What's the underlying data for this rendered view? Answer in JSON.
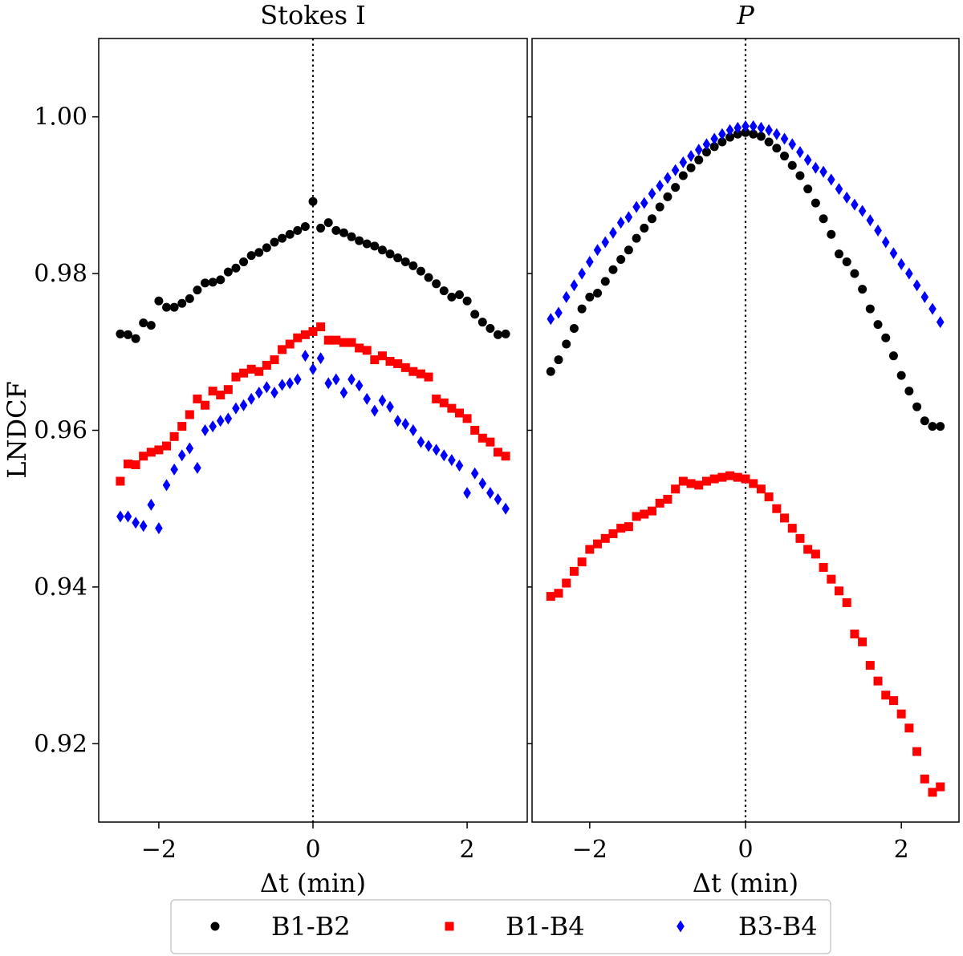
{
  "chart_data": [
    {
      "type": "scatter",
      "title": "Stokes I",
      "xlabel": "Δt (min)",
      "ylabel": "LNDCF",
      "xlim": [
        -2.78,
        2.78
      ],
      "ylim": [
        0.91,
        1.01
      ],
      "xticks": [
        -2,
        0,
        2
      ],
      "xtick_labels": [
        "−2",
        "0",
        "2"
      ],
      "yticks": [
        0.92,
        0.94,
        0.96,
        0.98,
        1.0
      ],
      "ytick_labels": [
        "0.92",
        "0.94",
        "0.96",
        "0.98",
        "1.00"
      ],
      "vline": 0,
      "grid": false,
      "x": [
        -2.5,
        -2.4,
        -2.3,
        -2.2,
        -2.1,
        -2.0,
        -1.9,
        -1.8,
        -1.7,
        -1.6,
        -1.5,
        -1.4,
        -1.3,
        -1.2,
        -1.1,
        -1.0,
        -0.9,
        -0.8,
        -0.7,
        -0.6,
        -0.5,
        -0.4,
        -0.3,
        -0.2,
        -0.1,
        0.0,
        0.1,
        0.2,
        0.3,
        0.4,
        0.5,
        0.6,
        0.7,
        0.8,
        0.9,
        1.0,
        1.1,
        1.2,
        1.3,
        1.4,
        1.5,
        1.6,
        1.7,
        1.8,
        1.9,
        2.0,
        2.1,
        2.2,
        2.3,
        2.4,
        2.5
      ],
      "series": [
        {
          "name": "B1-B2",
          "marker": "circle",
          "color": "#000000",
          "values": [
            0.9723,
            0.9722,
            0.9717,
            0.9737,
            0.9734,
            0.9765,
            0.9757,
            0.9757,
            0.9762,
            0.9768,
            0.9779,
            0.9788,
            0.9789,
            0.9792,
            0.9802,
            0.9807,
            0.9815,
            0.9823,
            0.9827,
            0.9833,
            0.984,
            0.9845,
            0.985,
            0.9855,
            0.986,
            0.9892,
            0.9858,
            0.9865,
            0.9855,
            0.9852,
            0.9847,
            0.9842,
            0.9838,
            0.9835,
            0.983,
            0.9825,
            0.982,
            0.9815,
            0.981,
            0.9803,
            0.9795,
            0.9787,
            0.9778,
            0.977,
            0.9773,
            0.9765,
            0.9748,
            0.9738,
            0.973,
            0.9722,
            0.9723
          ]
        },
        {
          "name": "B1-B4",
          "marker": "square",
          "color": "#ff0000",
          "values": [
            0.9535,
            0.9557,
            0.9556,
            0.9567,
            0.9572,
            0.9575,
            0.958,
            0.9592,
            0.9605,
            0.962,
            0.964,
            0.9632,
            0.965,
            0.9645,
            0.9652,
            0.9668,
            0.9673,
            0.9678,
            0.9675,
            0.9683,
            0.969,
            0.9703,
            0.971,
            0.9718,
            0.9722,
            0.9726,
            0.9732,
            0.9715,
            0.9715,
            0.9712,
            0.9712,
            0.9705,
            0.9702,
            0.969,
            0.9695,
            0.9688,
            0.9685,
            0.968,
            0.9675,
            0.9672,
            0.9668,
            0.964,
            0.9635,
            0.9628,
            0.9622,
            0.9615,
            0.96,
            0.959,
            0.9585,
            0.9572,
            0.9567
          ]
        },
        {
          "name": "B3-B4",
          "marker": "diamond",
          "color": "#0000ff",
          "values": [
            0.949,
            0.949,
            0.9482,
            0.9478,
            0.9505,
            0.9475,
            0.953,
            0.955,
            0.9568,
            0.9577,
            0.9552,
            0.96,
            0.9605,
            0.9612,
            0.9615,
            0.9628,
            0.9632,
            0.964,
            0.9648,
            0.9655,
            0.9648,
            0.9658,
            0.966,
            0.9665,
            0.9695,
            0.9678,
            0.9692,
            0.966,
            0.9665,
            0.9648,
            0.9665,
            0.9657,
            0.964,
            0.9625,
            0.9638,
            0.963,
            0.9612,
            0.9608,
            0.96,
            0.9585,
            0.958,
            0.9575,
            0.9568,
            0.9562,
            0.9555,
            0.952,
            0.9545,
            0.9532,
            0.952,
            0.9512,
            0.95
          ]
        }
      ]
    },
    {
      "type": "scatter",
      "title": "P",
      "xlabel": "Δt (min)",
      "xlim": [
        -2.74,
        2.74
      ],
      "ylim": [
        0.91,
        1.01
      ],
      "xticks": [
        -2,
        0,
        2
      ],
      "xtick_labels": [
        "−2",
        "0",
        "2"
      ],
      "vline": 0,
      "grid": false,
      "x": [
        -2.5,
        -2.4,
        -2.3,
        -2.2,
        -2.1,
        -2.0,
        -1.9,
        -1.8,
        -1.7,
        -1.6,
        -1.5,
        -1.4,
        -1.3,
        -1.2,
        -1.1,
        -1.0,
        -0.9,
        -0.8,
        -0.7,
        -0.6,
        -0.5,
        -0.4,
        -0.3,
        -0.2,
        -0.1,
        0.0,
        0.1,
        0.2,
        0.3,
        0.4,
        0.5,
        0.6,
        0.7,
        0.8,
        0.9,
        1.0,
        1.1,
        1.2,
        1.3,
        1.4,
        1.5,
        1.6,
        1.7,
        1.8,
        1.9,
        2.0,
        2.1,
        2.2,
        2.3,
        2.4,
        2.5
      ],
      "series": [
        {
          "name": "B1-B2",
          "marker": "circle",
          "color": "#000000",
          "values": [
            0.9675,
            0.969,
            0.971,
            0.973,
            0.9755,
            0.977,
            0.9775,
            0.979,
            0.9805,
            0.9818,
            0.983,
            0.9845,
            0.9858,
            0.987,
            0.9885,
            0.9898,
            0.991,
            0.9925,
            0.9935,
            0.9945,
            0.9955,
            0.9962,
            0.9968,
            0.9974,
            0.9978,
            0.998,
            0.9978,
            0.9975,
            0.9968,
            0.996,
            0.995,
            0.9938,
            0.9925,
            0.9908,
            0.989,
            0.987,
            0.985,
            0.9825,
            0.9815,
            0.98,
            0.978,
            0.9755,
            0.9735,
            0.9718,
            0.9695,
            0.967,
            0.965,
            0.963,
            0.9612,
            0.9605,
            0.9605
          ]
        },
        {
          "name": "B1-B4",
          "marker": "square",
          "color": "#ff0000",
          "values": [
            0.9388,
            0.9392,
            0.9405,
            0.942,
            0.9432,
            0.9448,
            0.9455,
            0.9462,
            0.9468,
            0.9475,
            0.9477,
            0.949,
            0.9493,
            0.9497,
            0.9507,
            0.9512,
            0.9525,
            0.9535,
            0.9532,
            0.953,
            0.9535,
            0.9538,
            0.954,
            0.9542,
            0.954,
            0.9538,
            0.9532,
            0.9525,
            0.9515,
            0.95,
            0.9488,
            0.9475,
            0.9462,
            0.9448,
            0.9442,
            0.9425,
            0.941,
            0.9395,
            0.938,
            0.934,
            0.933,
            0.93,
            0.928,
            0.9262,
            0.9255,
            0.9238,
            0.922,
            0.919,
            0.9155,
            0.9138,
            0.9145
          ]
        },
        {
          "name": "B3-B4",
          "marker": "diamond",
          "color": "#0000ff",
          "values": [
            0.9742,
            0.975,
            0.977,
            0.9785,
            0.98,
            0.9815,
            0.983,
            0.984,
            0.9852,
            0.9865,
            0.9872,
            0.9885,
            0.989,
            0.9902,
            0.9912,
            0.9922,
            0.9932,
            0.9942,
            0.995,
            0.9958,
            0.9965,
            0.9972,
            0.9978,
            0.9983,
            0.9986,
            0.9988,
            0.9988,
            0.9986,
            0.9983,
            0.9978,
            0.9972,
            0.9965,
            0.9955,
            0.9945,
            0.9935,
            0.993,
            0.992,
            0.9908,
            0.9897,
            0.9888,
            0.988,
            0.9868,
            0.9855,
            0.984,
            0.9826,
            0.9812,
            0.98,
            0.9785,
            0.977,
            0.9755,
            0.9738
          ]
        }
      ]
    }
  ],
  "legend": {
    "placement": "bottom-center",
    "entries": [
      "B1-B2",
      "B1-B4",
      "B3-B4"
    ]
  }
}
